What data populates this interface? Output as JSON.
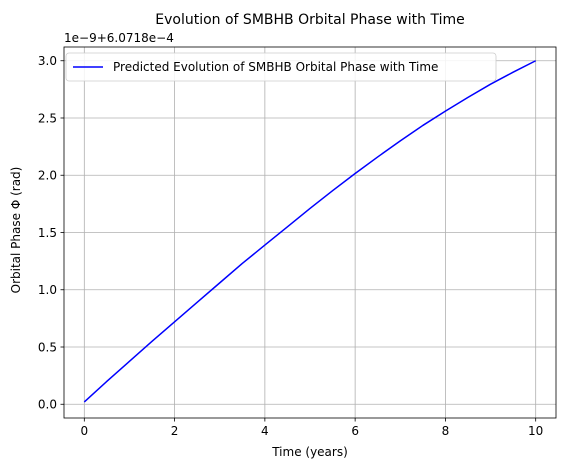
{
  "chart_data": {
    "type": "line",
    "title": "Evolution of SMBHB Orbital Phase with Time",
    "xlabel": "Time (years)",
    "ylabel": "Orbital Phase Φ (rad)",
    "offset_text": "1e−9+6.0718e−4",
    "xlim": [
      -0.45,
      10.45
    ],
    "ylim": [
      -0.12,
      3.12
    ],
    "xticks": [
      0,
      2,
      4,
      6,
      8,
      10
    ],
    "xtick_labels": [
      "0",
      "2",
      "4",
      "6",
      "8",
      "10"
    ],
    "yticks": [
      0.0,
      0.5,
      1.0,
      1.5,
      2.0,
      2.5,
      3.0
    ],
    "ytick_labels": [
      "0.0",
      "0.5",
      "1.0",
      "1.5",
      "2.0",
      "2.5",
      "3.0"
    ],
    "grid": true,
    "legend_position": "upper-left",
    "series": [
      {
        "name": "Predicted Evolution of SMBHB Orbital Phase with Time",
        "color": "#0000ff",
        "x": [
          0,
          0.5,
          1,
          1.5,
          2,
          2.5,
          3,
          3.5,
          4,
          4.5,
          5,
          5.5,
          6,
          6.5,
          7,
          7.5,
          8,
          8.5,
          9,
          9.5,
          10
        ],
        "y": [
          0.02,
          0.2,
          0.375,
          0.55,
          0.72,
          0.89,
          1.06,
          1.23,
          1.39,
          1.55,
          1.71,
          1.865,
          2.015,
          2.16,
          2.3,
          2.435,
          2.56,
          2.68,
          2.795,
          2.9,
          3.0
        ]
      }
    ]
  }
}
